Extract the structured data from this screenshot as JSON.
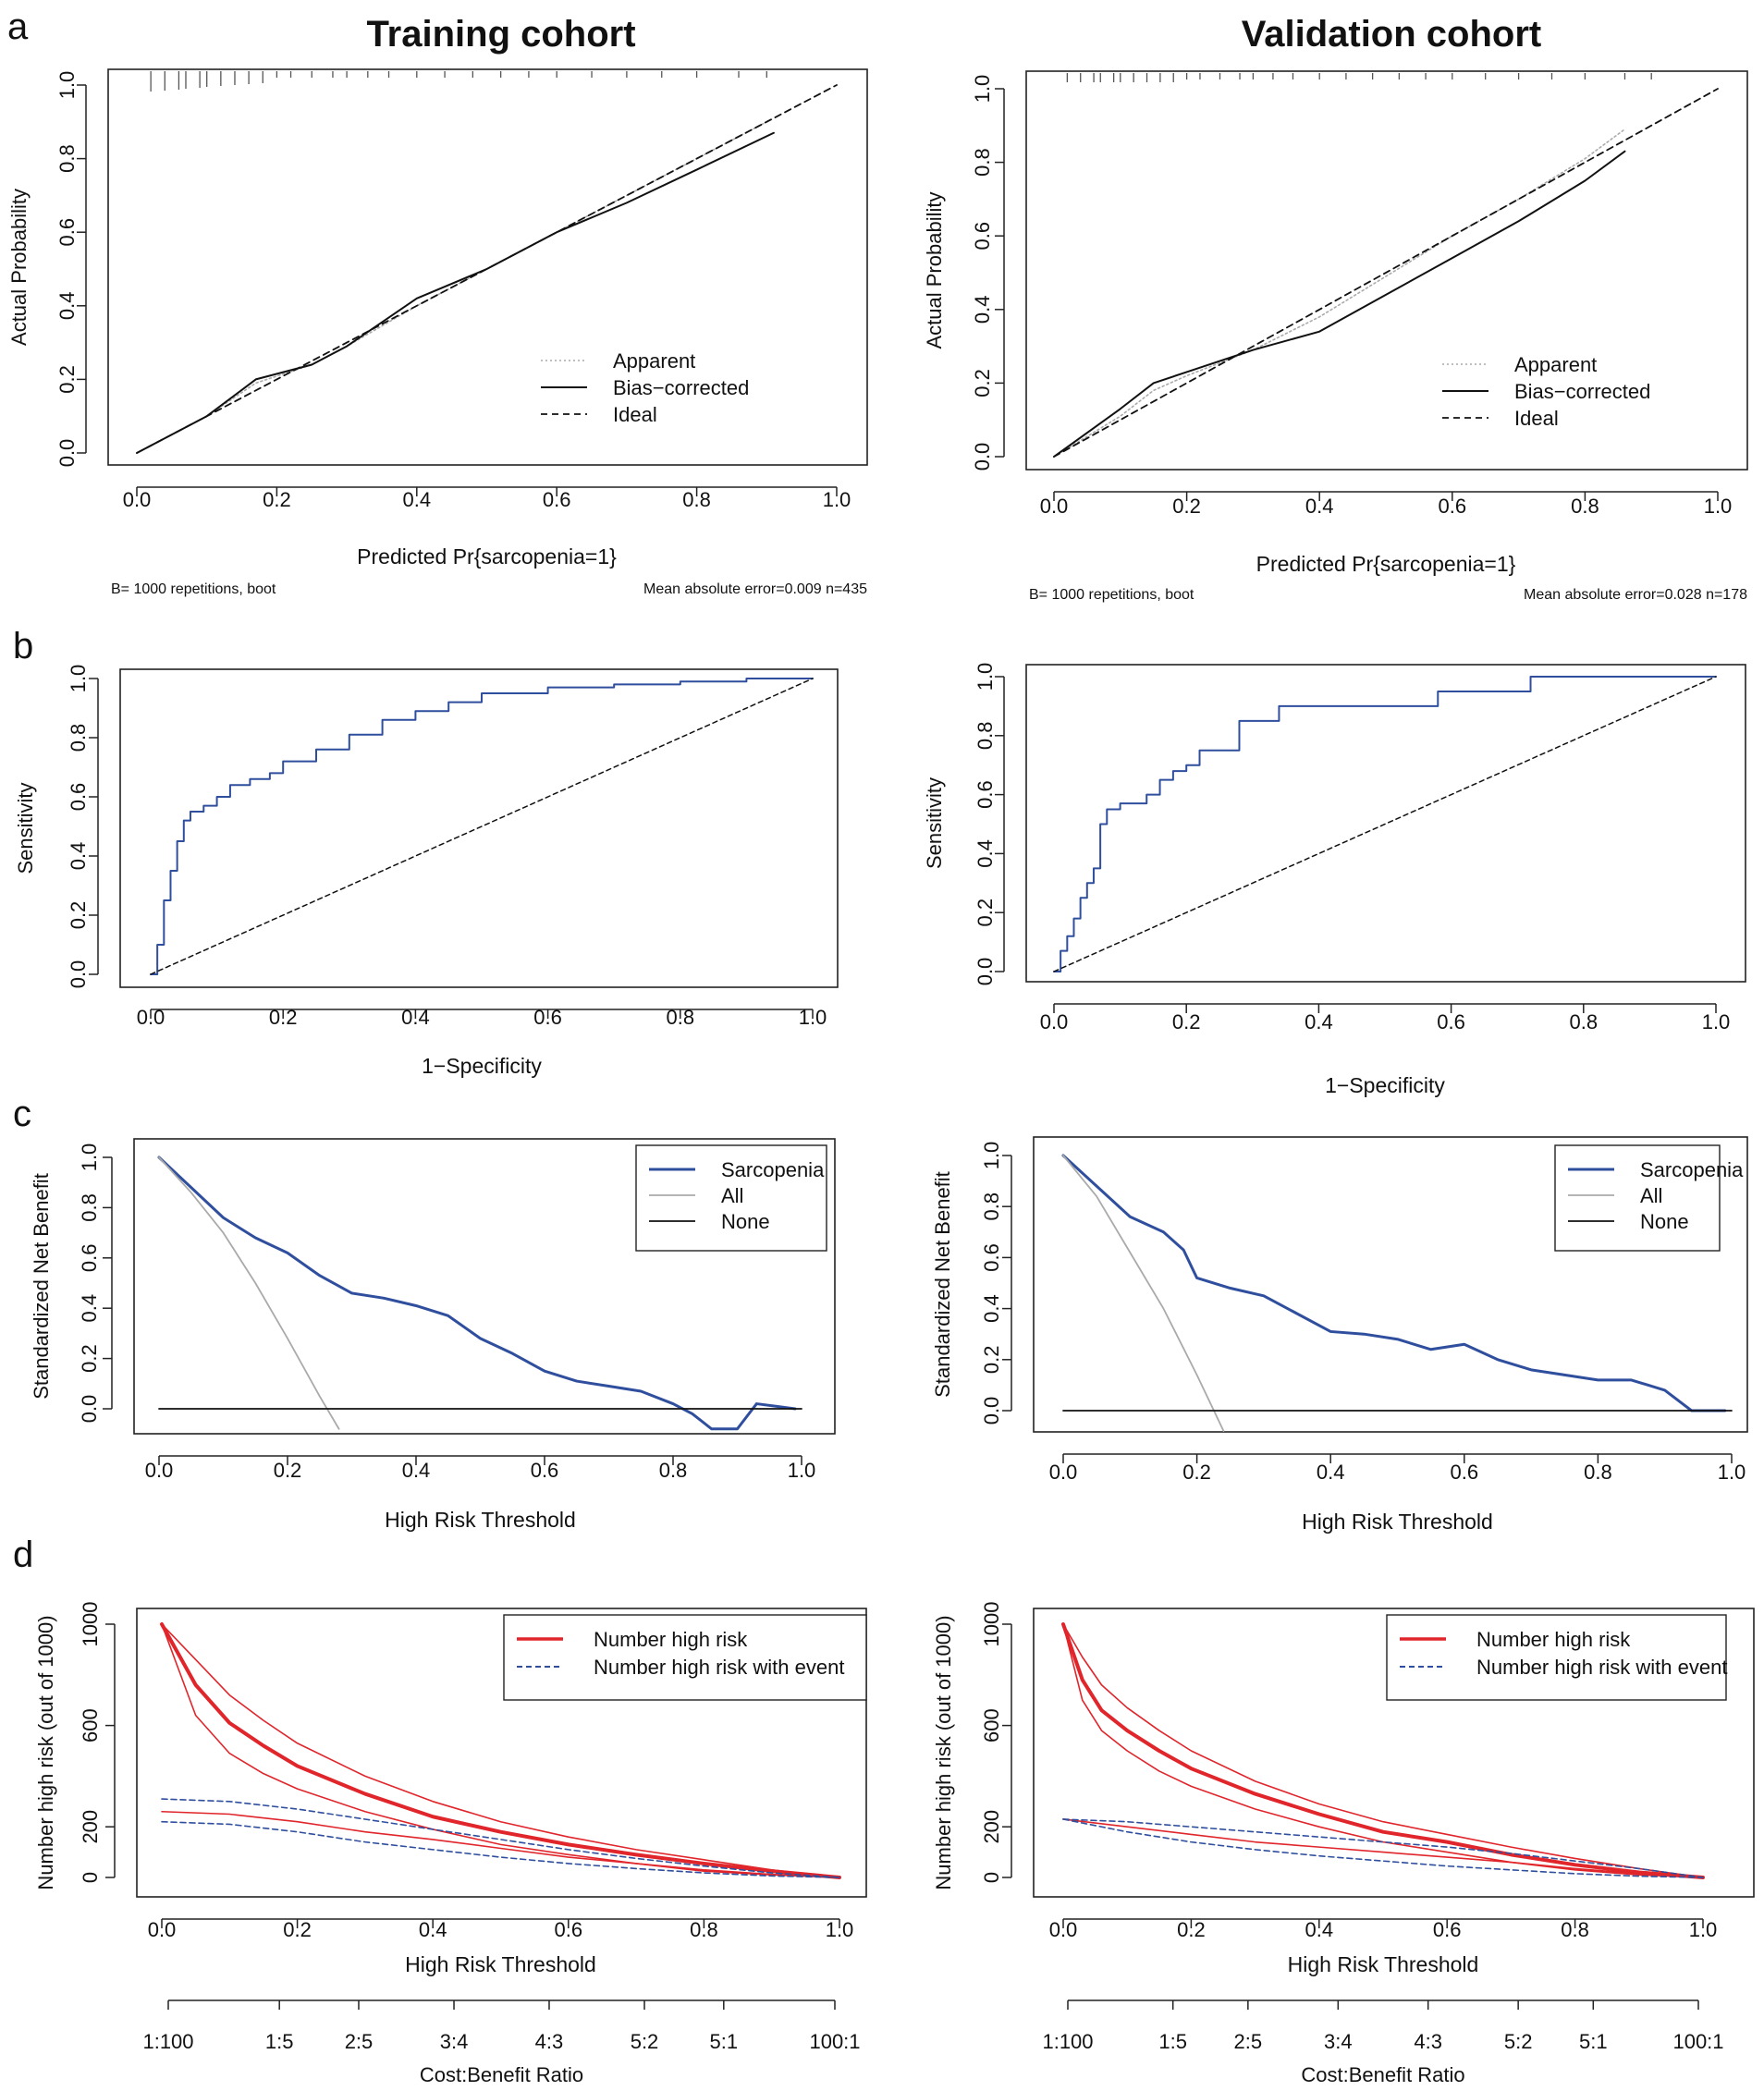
{
  "figure": {
    "panel_letters": [
      "a",
      "b",
      "c",
      "d"
    ],
    "column_titles": [
      "Training cohort",
      "Validation cohort"
    ]
  },
  "colors": {
    "blue": "#2f4f9e",
    "red": "#e0252b",
    "gray": "#aaaaaa",
    "black": "#111111"
  },
  "chart_data": [
    {
      "id": "calib-train",
      "panel": "a",
      "cohort": "Training cohort",
      "type": "line",
      "title": "",
      "xlabel": "Predicted Pr{sarcopenia=1}",
      "ylabel": "Actual Probability",
      "xlim": [
        0,
        1
      ],
      "ylim": [
        0,
        1
      ],
      "xticks": [
        "0.0",
        "0.2",
        "0.4",
        "0.6",
        "0.8",
        "1.0"
      ],
      "yticks": [
        "0.0",
        "0.2",
        "0.4",
        "0.6",
        "0.8",
        "1.0"
      ],
      "footnote_left": "B= 1000 repetitions, boot",
      "footnote_right": "Mean absolute error=0.009 n=435",
      "legend": [
        "Apparent",
        "Bias−corrected",
        "Ideal"
      ],
      "series": [
        {
          "name": "Apparent",
          "style": "dotted",
          "x": [
            0.0,
            0.1,
            0.17,
            0.25,
            0.3,
            0.4,
            0.5,
            0.6,
            0.7,
            0.8,
            0.91
          ],
          "y": [
            0.0,
            0.1,
            0.19,
            0.24,
            0.29,
            0.4,
            0.5,
            0.6,
            0.7,
            0.8,
            0.91
          ]
        },
        {
          "name": "Bias−corrected",
          "style": "solid",
          "x": [
            0.0,
            0.1,
            0.17,
            0.25,
            0.3,
            0.4,
            0.5,
            0.6,
            0.7,
            0.8,
            0.91
          ],
          "y": [
            0.0,
            0.1,
            0.2,
            0.24,
            0.29,
            0.42,
            0.5,
            0.6,
            0.68,
            0.77,
            0.87
          ]
        },
        {
          "name": "Ideal",
          "style": "dashed",
          "x": [
            0.0,
            1.0
          ],
          "y": [
            0.0,
            1.0
          ]
        }
      ]
    },
    {
      "id": "calib-valid",
      "panel": "a",
      "cohort": "Validation cohort",
      "type": "line",
      "title": "",
      "xlabel": "Predicted Pr{sarcopenia=1}",
      "ylabel": "Actual Probability",
      "xlim": [
        0,
        1
      ],
      "ylim": [
        0,
        1
      ],
      "xticks": [
        "0.0",
        "0.2",
        "0.4",
        "0.6",
        "0.8",
        "1.0"
      ],
      "yticks": [
        "0.0",
        "0.2",
        "0.4",
        "0.6",
        "0.8",
        "1.0"
      ],
      "footnote_left": "B= 1000 repetitions, boot",
      "footnote_right": "Mean absolute error=0.028 n=178",
      "legend": [
        "Apparent",
        "Bias−corrected",
        "Ideal"
      ],
      "series": [
        {
          "name": "Apparent",
          "style": "dotted",
          "x": [
            0.0,
            0.1,
            0.15,
            0.2,
            0.3,
            0.4,
            0.5,
            0.6,
            0.7,
            0.8,
            0.86
          ],
          "y": [
            0.0,
            0.11,
            0.18,
            0.22,
            0.29,
            0.38,
            0.49,
            0.6,
            0.7,
            0.81,
            0.89
          ]
        },
        {
          "name": "Bias−corrected",
          "style": "solid",
          "x": [
            0.0,
            0.1,
            0.15,
            0.2,
            0.3,
            0.4,
            0.5,
            0.6,
            0.7,
            0.8,
            0.86
          ],
          "y": [
            0.0,
            0.13,
            0.2,
            0.23,
            0.29,
            0.34,
            0.44,
            0.54,
            0.64,
            0.75,
            0.83
          ]
        },
        {
          "name": "Ideal",
          "style": "dashed",
          "x": [
            0.0,
            1.0
          ],
          "y": [
            0.0,
            1.0
          ]
        }
      ]
    },
    {
      "id": "roc-train",
      "panel": "b",
      "cohort": "Training cohort",
      "type": "line",
      "title": "",
      "xlabel": "1−Specificity",
      "ylabel": "Sensitivity",
      "xlim": [
        0,
        1
      ],
      "ylim": [
        0,
        1
      ],
      "xticks": [
        "0.0",
        "0.2",
        "0.4",
        "0.6",
        "0.8",
        "1.0"
      ],
      "yticks": [
        "0.0",
        "0.2",
        "0.4",
        "0.6",
        "0.8",
        "1.0"
      ],
      "series": [
        {
          "name": "ROC",
          "style": "step",
          "x": [
            0.0,
            0.01,
            0.02,
            0.03,
            0.04,
            0.05,
            0.06,
            0.08,
            0.1,
            0.12,
            0.15,
            0.18,
            0.2,
            0.25,
            0.3,
            0.35,
            0.4,
            0.45,
            0.5,
            0.6,
            0.7,
            0.8,
            0.9,
            1.0
          ],
          "y": [
            0.0,
            0.1,
            0.25,
            0.35,
            0.45,
            0.52,
            0.55,
            0.57,
            0.6,
            0.64,
            0.66,
            0.68,
            0.72,
            0.76,
            0.81,
            0.86,
            0.89,
            0.92,
            0.95,
            0.97,
            0.98,
            0.99,
            1.0,
            1.0
          ]
        },
        {
          "name": "Reference",
          "style": "dashed",
          "x": [
            0.0,
            1.0
          ],
          "y": [
            0.0,
            1.0
          ]
        }
      ]
    },
    {
      "id": "roc-valid",
      "panel": "b",
      "cohort": "Validation cohort",
      "type": "line",
      "title": "",
      "xlabel": "1−Specificity",
      "ylabel": "Sensitivity",
      "xlim": [
        0,
        1
      ],
      "ylim": [
        0,
        1
      ],
      "xticks": [
        "0.0",
        "0.2",
        "0.4",
        "0.6",
        "0.8",
        "1.0"
      ],
      "yticks": [
        "0.0",
        "0.2",
        "0.4",
        "0.6",
        "0.8",
        "1.0"
      ],
      "series": [
        {
          "name": "ROC",
          "style": "step",
          "x": [
            0.0,
            0.01,
            0.02,
            0.03,
            0.04,
            0.05,
            0.06,
            0.07,
            0.08,
            0.1,
            0.14,
            0.16,
            0.18,
            0.2,
            0.22,
            0.28,
            0.34,
            0.5,
            0.58,
            0.71,
            0.72,
            1.0
          ],
          "y": [
            0.0,
            0.07,
            0.12,
            0.18,
            0.25,
            0.3,
            0.35,
            0.5,
            0.55,
            0.57,
            0.6,
            0.65,
            0.68,
            0.7,
            0.75,
            0.85,
            0.9,
            0.9,
            0.95,
            0.95,
            1.0,
            1.0
          ]
        },
        {
          "name": "Reference",
          "style": "dashed",
          "x": [
            0.0,
            1.0
          ],
          "y": [
            0.0,
            1.0
          ]
        }
      ]
    },
    {
      "id": "dca-train",
      "panel": "c",
      "cohort": "Training cohort",
      "type": "line",
      "title": "",
      "xlabel": "High Risk Threshold",
      "ylabel": "Standardized Net Benefit",
      "xlim": [
        0,
        1
      ],
      "ylim": [
        -0.08,
        1
      ],
      "xticks": [
        "0.0",
        "0.2",
        "0.4",
        "0.6",
        "0.8",
        "1.0"
      ],
      "yticks": [
        "0.0",
        "0.2",
        "0.4",
        "0.6",
        "0.8",
        "1.0"
      ],
      "legend": [
        "Sarcopenia",
        "All",
        "None"
      ],
      "series": [
        {
          "name": "Sarcopenia",
          "x": [
            0.0,
            0.05,
            0.1,
            0.15,
            0.2,
            0.25,
            0.3,
            0.35,
            0.4,
            0.45,
            0.5,
            0.55,
            0.6,
            0.65,
            0.7,
            0.75,
            0.8,
            0.83,
            0.86,
            0.9,
            0.93,
            0.96,
            0.99
          ],
          "y": [
            1.0,
            0.88,
            0.76,
            0.68,
            0.62,
            0.53,
            0.46,
            0.44,
            0.41,
            0.37,
            0.28,
            0.22,
            0.15,
            0.11,
            0.09,
            0.07,
            0.02,
            -0.02,
            -0.08,
            -0.08,
            0.02,
            0.01,
            0.0
          ]
        },
        {
          "name": "All",
          "x": [
            0.0,
            0.05,
            0.1,
            0.15,
            0.2,
            0.25,
            0.28
          ],
          "y": [
            1.0,
            0.86,
            0.7,
            0.5,
            0.28,
            0.05,
            -0.08
          ]
        },
        {
          "name": "None",
          "x": [
            0.0,
            1.0
          ],
          "y": [
            0.0,
            0.0
          ]
        }
      ]
    },
    {
      "id": "dca-valid",
      "panel": "c",
      "cohort": "Validation cohort",
      "type": "line",
      "title": "",
      "xlabel": "High Risk Threshold",
      "ylabel": "Standardized Net Benefit",
      "xlim": [
        0,
        1
      ],
      "ylim": [
        -0.08,
        1
      ],
      "xticks": [
        "0.0",
        "0.2",
        "0.4",
        "0.6",
        "0.8",
        "1.0"
      ],
      "yticks": [
        "0.0",
        "0.2",
        "0.4",
        "0.6",
        "0.8",
        "1.0"
      ],
      "legend": [
        "Sarcopenia",
        "All",
        "None"
      ],
      "series": [
        {
          "name": "Sarcopenia",
          "x": [
            0.0,
            0.05,
            0.1,
            0.15,
            0.18,
            0.2,
            0.25,
            0.3,
            0.35,
            0.4,
            0.45,
            0.5,
            0.55,
            0.6,
            0.65,
            0.7,
            0.75,
            0.8,
            0.85,
            0.9,
            0.94,
            0.99
          ],
          "y": [
            1.0,
            0.88,
            0.76,
            0.7,
            0.63,
            0.52,
            0.48,
            0.45,
            0.38,
            0.31,
            0.3,
            0.28,
            0.24,
            0.26,
            0.2,
            0.16,
            0.14,
            0.12,
            0.12,
            0.08,
            0.0,
            0.0
          ]
        },
        {
          "name": "All",
          "x": [
            0.0,
            0.05,
            0.1,
            0.15,
            0.2,
            0.22,
            0.24
          ],
          "y": [
            1.0,
            0.84,
            0.62,
            0.4,
            0.14,
            0.03,
            -0.08
          ]
        },
        {
          "name": "None",
          "x": [
            0.0,
            1.0
          ],
          "y": [
            0.0,
            0.0
          ]
        }
      ]
    },
    {
      "id": "cic-train",
      "panel": "d",
      "cohort": "Training cohort",
      "type": "line",
      "title": "",
      "xlabel": "High Risk Threshold",
      "ylabel": "Number high risk (out of 1000)",
      "xlim": [
        0,
        1
      ],
      "ylim": [
        0,
        1000
      ],
      "xticks": [
        "0.0",
        "0.2",
        "0.4",
        "0.6",
        "0.8",
        "1.0"
      ],
      "yticks": [
        "0",
        "200",
        "600",
        "1000"
      ],
      "cost_benefit_label": "Cost:Benefit Ratio",
      "cost_benefit_ticks": [
        "1:100",
        "1:5",
        "2:5",
        "3:4",
        "4:3",
        "5:2",
        "5:1",
        "100:1"
      ],
      "legend": [
        "Number high risk",
        "Number high risk with event"
      ],
      "series": [
        {
          "name": "Number high risk",
          "x": [
            0.0,
            0.05,
            0.1,
            0.15,
            0.2,
            0.3,
            0.4,
            0.5,
            0.6,
            0.7,
            0.8,
            0.9,
            1.0
          ],
          "y": [
            1000,
            760,
            610,
            520,
            440,
            330,
            240,
            180,
            130,
            90,
            55,
            25,
            0
          ]
        },
        {
          "name": "Number high risk upper",
          "x": [
            0.0,
            0.05,
            0.1,
            0.15,
            0.2,
            0.3,
            0.4,
            0.5,
            0.6,
            0.7,
            0.8,
            0.9,
            1.0
          ],
          "y": [
            1000,
            860,
            720,
            620,
            530,
            400,
            300,
            220,
            160,
            110,
            70,
            30,
            0
          ]
        },
        {
          "name": "Number high risk lower",
          "x": [
            0.0,
            0.05,
            0.1,
            0.15,
            0.2,
            0.3,
            0.4,
            0.5,
            0.6,
            0.7,
            0.8,
            0.9,
            1.0
          ],
          "y": [
            1000,
            640,
            490,
            410,
            350,
            260,
            190,
            130,
            90,
            55,
            25,
            10,
            0
          ]
        },
        {
          "name": "Number high risk with event",
          "x": [
            0.0,
            0.1,
            0.2,
            0.3,
            0.4,
            0.5,
            0.6,
            0.7,
            0.8,
            0.9,
            1.0
          ],
          "y": [
            260,
            250,
            220,
            180,
            150,
            115,
            80,
            55,
            30,
            12,
            0
          ]
        },
        {
          "name": "With event upper",
          "x": [
            0.0,
            0.1,
            0.2,
            0.3,
            0.4,
            0.5,
            0.6,
            0.7,
            0.8,
            0.9,
            1.0
          ],
          "y": [
            310,
            300,
            270,
            230,
            190,
            150,
            110,
            75,
            45,
            18,
            0
          ]
        },
        {
          "name": "With event lower",
          "x": [
            0.0,
            0.1,
            0.2,
            0.3,
            0.4,
            0.5,
            0.6,
            0.7,
            0.8,
            0.9,
            1.0
          ],
          "y": [
            220,
            210,
            180,
            140,
            110,
            80,
            55,
            35,
            18,
            6,
            0
          ]
        }
      ]
    },
    {
      "id": "cic-valid",
      "panel": "d",
      "cohort": "Validation cohort",
      "type": "line",
      "title": "",
      "xlabel": "High Risk Threshold",
      "ylabel": "Number high risk (out of 1000)",
      "xlim": [
        0,
        1
      ],
      "ylim": [
        0,
        1000
      ],
      "xticks": [
        "0.0",
        "0.2",
        "0.4",
        "0.6",
        "0.8",
        "1.0"
      ],
      "yticks": [
        "0",
        "200",
        "600",
        "1000"
      ],
      "cost_benefit_label": "Cost:Benefit Ratio",
      "cost_benefit_ticks": [
        "1:100",
        "1:5",
        "2:5",
        "3:4",
        "4:3",
        "5:2",
        "5:1",
        "100:1"
      ],
      "legend": [
        "Number high risk",
        "Number high risk with event"
      ],
      "series": [
        {
          "name": "Number high risk",
          "x": [
            0.0,
            0.03,
            0.06,
            0.1,
            0.15,
            0.2,
            0.3,
            0.4,
            0.5,
            0.6,
            0.7,
            0.8,
            0.9,
            1.0
          ],
          "y": [
            1000,
            780,
            660,
            580,
            500,
            430,
            330,
            250,
            180,
            140,
            90,
            50,
            20,
            0
          ]
        },
        {
          "name": "Number high risk upper",
          "x": [
            0.0,
            0.03,
            0.06,
            0.1,
            0.15,
            0.2,
            0.3,
            0.4,
            0.5,
            0.6,
            0.7,
            0.8,
            0.9,
            1.0
          ],
          "y": [
            1000,
            870,
            760,
            670,
            580,
            500,
            380,
            290,
            220,
            170,
            120,
            75,
            35,
            0
          ]
        },
        {
          "name": "Number high risk lower",
          "x": [
            0.0,
            0.03,
            0.06,
            0.1,
            0.15,
            0.2,
            0.3,
            0.4,
            0.5,
            0.6,
            0.7,
            0.8,
            0.9,
            1.0
          ],
          "y": [
            1000,
            700,
            580,
            500,
            420,
            360,
            270,
            200,
            140,
            100,
            60,
            30,
            10,
            0
          ]
        },
        {
          "name": "Number high risk with event",
          "x": [
            0.0,
            0.1,
            0.2,
            0.3,
            0.4,
            0.5,
            0.6,
            0.7,
            0.8,
            0.9,
            1.0
          ],
          "y": [
            230,
            200,
            170,
            140,
            120,
            100,
            80,
            60,
            35,
            15,
            0
          ]
        },
        {
          "name": "With event upper",
          "x": [
            0.0,
            0.1,
            0.2,
            0.3,
            0.4,
            0.5,
            0.6,
            0.7,
            0.8,
            0.9,
            1.0
          ],
          "y": [
            230,
            220,
            200,
            180,
            160,
            140,
            120,
            95,
            65,
            35,
            0
          ]
        },
        {
          "name": "With event lower",
          "x": [
            0.0,
            0.1,
            0.2,
            0.3,
            0.4,
            0.5,
            0.6,
            0.7,
            0.8,
            0.9,
            1.0
          ],
          "y": [
            230,
            180,
            140,
            110,
            85,
            65,
            45,
            30,
            15,
            5,
            0
          ]
        }
      ]
    }
  ]
}
